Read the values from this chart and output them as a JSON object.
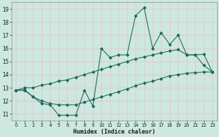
{
  "xlabel": "Humidex (Indice chaleur)",
  "bg_color": "#cce8e0",
  "grid_color": "#e8c8c8",
  "line_color": "#1a6b5a",
  "x_ticks": [
    0,
    1,
    2,
    3,
    4,
    5,
    6,
    7,
    8,
    9,
    10,
    11,
    12,
    13,
    14,
    15,
    16,
    17,
    18,
    19,
    20,
    21,
    22,
    23
  ],
  "y_ticks": [
    11,
    12,
    13,
    14,
    15,
    16,
    17,
    18,
    19
  ],
  "ylim": [
    10.5,
    19.5
  ],
  "xlim": [
    -0.5,
    23.5
  ],
  "main_line_x": [
    0,
    1,
    2,
    3,
    4,
    5,
    6,
    7,
    8,
    9,
    10,
    11,
    12,
    13,
    14,
    15,
    16,
    17,
    18,
    19,
    20,
    21,
    22,
    23
  ],
  "main_line_y": [
    12.8,
    12.8,
    12.3,
    11.8,
    11.7,
    10.9,
    10.9,
    10.9,
    12.8,
    11.6,
    16.0,
    15.3,
    15.5,
    15.5,
    18.5,
    19.1,
    16.0,
    17.2,
    16.3,
    17.0,
    15.5,
    15.5,
    14.7,
    14.2
  ],
  "upper_line_y": [
    12.8,
    13.0,
    13.0,
    13.2,
    13.3,
    13.5,
    13.6,
    13.8,
    14.0,
    14.2,
    14.4,
    14.6,
    14.8,
    15.0,
    15.2,
    15.35,
    15.5,
    15.65,
    15.8,
    15.9,
    15.5,
    15.5,
    15.55,
    14.2
  ],
  "lower_line_y": [
    12.8,
    12.85,
    12.3,
    12.0,
    11.8,
    11.7,
    11.7,
    11.7,
    11.9,
    12.1,
    12.3,
    12.5,
    12.7,
    12.9,
    13.15,
    13.35,
    13.5,
    13.7,
    13.9,
    14.0,
    14.1,
    14.15,
    14.2,
    14.2
  ]
}
